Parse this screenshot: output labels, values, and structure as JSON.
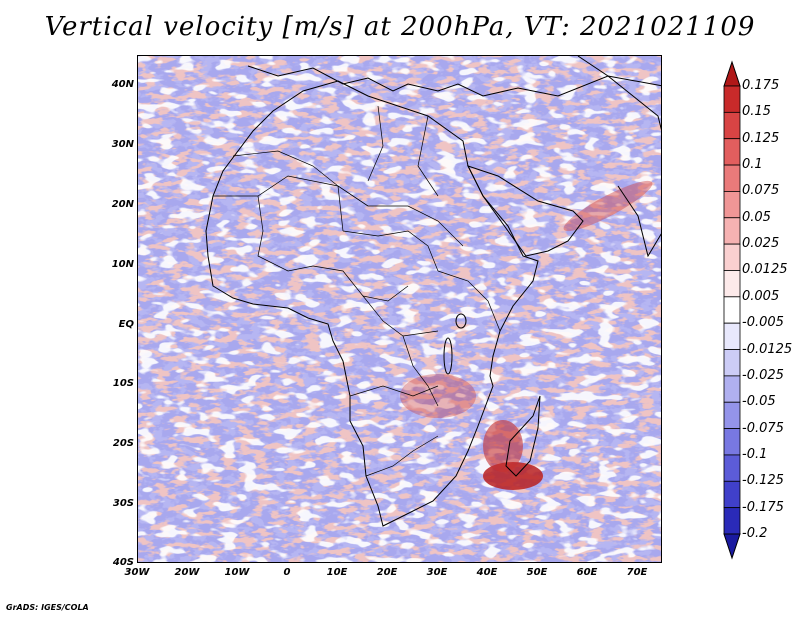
{
  "title": "Vertical velocity [m/s] at 200hPa, VT: 2021021109",
  "credit": "GrADS: IGES/COLA",
  "lat_labels": [
    "40N",
    "30N",
    "20N",
    "10N",
    "EQ",
    "10S",
    "20S",
    "30S",
    "40S"
  ],
  "lon_labels": [
    "30W",
    "20W",
    "10W",
    "0",
    "10E",
    "20E",
    "30E",
    "40E",
    "50E",
    "60E",
    "70E"
  ],
  "colorbar": {
    "labels": [
      "0.175",
      "0.15",
      "0.125",
      "0.1",
      "0.075",
      "0.05",
      "0.025",
      "0.0125",
      "0.005",
      "-0.005",
      "-0.0125",
      "-0.025",
      "-0.05",
      "-0.075",
      "-0.1",
      "-0.125",
      "-0.175",
      "-0.2"
    ],
    "colors": [
      "#b01818",
      "#c82a2a",
      "#d84444",
      "#e25e5e",
      "#ea7a7a",
      "#f09696",
      "#f6b2b2",
      "#fad0d0",
      "#fdeaea",
      "#ffffff",
      "#e8e8fc",
      "#ccccf6",
      "#b0b0f0",
      "#9494ea",
      "#7878e2",
      "#5c5cd8",
      "#4040ca",
      "#2a2ab8",
      "#1a1aa0"
    ]
  }
}
